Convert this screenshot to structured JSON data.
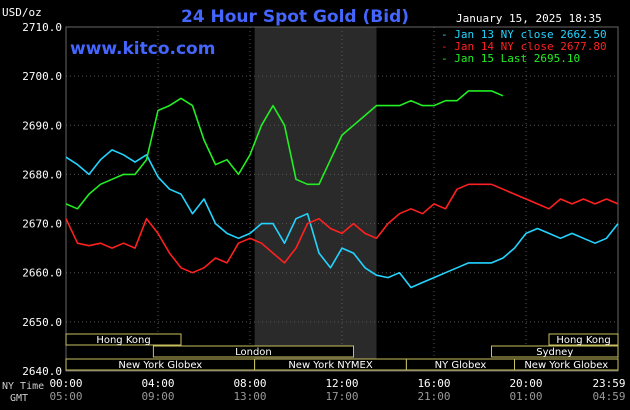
{
  "header": {
    "title": "24 Hour Spot Gold (Bid)",
    "unit_label": "USD/oz",
    "datetime": "January 15, 2025 18:35",
    "website": "www.kitco.com"
  },
  "legend": [
    {
      "text": "Jan 13 NY close 2662.50",
      "color": "#22d4ff"
    },
    {
      "text": "Jan 14 NY close 2677.80",
      "color": "#ff2020"
    },
    {
      "text": "Jan 15 Last 2695.10",
      "color": "#22ee22"
    }
  ],
  "row_labels": {
    "ny": "NY Time",
    "gmt": "GMT"
  },
  "x_ticks_ny": [
    "00:00",
    "04:00",
    "08:00",
    "12:00",
    "16:00",
    "20:00",
    "23:59"
  ],
  "x_ticks_gmt": [
    "05:00",
    "09:00",
    "13:00",
    "17:00",
    "21:00",
    "01:00",
    "04:59"
  ],
  "sessions": [
    {
      "label": "Hong Kong",
      "start": 0,
      "end": 5
    },
    {
      "label": "Hong Kong",
      "start": 21,
      "end": 24
    },
    {
      "label": "London",
      "start": 3.8,
      "end": 12.5
    },
    {
      "label": "Sydney",
      "start": 18.5,
      "end": 24
    },
    {
      "label": "New York Globex",
      "start": 0,
      "end": 8.2
    },
    {
      "label": "New York NYMEX",
      "start": 8.2,
      "end": 14.8
    },
    {
      "label": "NY Globex",
      "start": 14.8,
      "end": 19.5
    },
    {
      "label": "New York Globex",
      "start": 19.5,
      "end": 24
    }
  ],
  "chart_data": {
    "type": "line",
    "title": "24 Hour Spot Gold (Bid)",
    "ylabel": "USD/oz",
    "ylim": [
      2640,
      2710
    ],
    "xlim": [
      0,
      24
    ],
    "yticks": [
      "2640.0",
      "2650.0",
      "2660.0",
      "2670.0",
      "2680.0",
      "2690.0",
      "2700.0",
      "2710.0"
    ],
    "shaded_range": [
      8.2,
      13.5
    ],
    "series": [
      {
        "name": "Jan 13 NY close 2662.50",
        "color": "#22d4ff",
        "x": [
          0,
          0.5,
          1,
          1.5,
          2,
          2.5,
          3,
          3.5,
          4,
          4.5,
          5,
          5.5,
          6,
          6.5,
          7,
          7.5,
          8,
          8.5,
          9,
          9.5,
          10,
          10.5,
          11,
          11.5,
          12,
          12.5,
          13,
          13.5,
          14,
          14.5,
          15,
          15.5,
          16,
          16.5,
          17,
          17.5,
          18,
          18.5,
          19,
          19.5,
          20,
          20.5,
          21,
          21.5,
          22,
          22.5,
          23,
          23.5,
          24
        ],
        "y": [
          2683.5,
          2682,
          2680,
          2683,
          2685,
          2684,
          2682.5,
          2684,
          2679.5,
          2677,
          2676,
          2672,
          2675,
          2670,
          2668,
          2667,
          2668,
          2670,
          2670,
          2666,
          2671,
          2672,
          2664,
          2661,
          2665,
          2664,
          2661,
          2659.5,
          2659,
          2660,
          2657,
          2658,
          2659,
          2660,
          2661,
          2662,
          2662,
          2662,
          2663,
          2665,
          2668,
          2669,
          2668,
          2667,
          2668,
          2667,
          2666,
          2667,
          2670
        ]
      },
      {
        "name": "Jan 14 NY close 2677.80",
        "color": "#ff2020",
        "x": [
          0,
          0.5,
          1,
          1.5,
          2,
          2.5,
          3,
          3.5,
          4,
          4.5,
          5,
          5.5,
          6,
          6.5,
          7,
          7.5,
          8,
          8.5,
          9,
          9.5,
          10,
          10.5,
          11,
          11.5,
          12,
          12.5,
          13,
          13.5,
          14,
          14.5,
          15,
          15.5,
          16,
          16.5,
          17,
          17.5,
          18,
          18.5,
          19,
          19.5,
          20,
          20.5,
          21,
          21.5,
          22,
          22.5,
          23,
          23.5,
          24
        ],
        "y": [
          2671,
          2666,
          2665.5,
          2666,
          2665,
          2666,
          2665,
          2671,
          2668,
          2664,
          2661,
          2660,
          2661,
          2663,
          2662,
          2666,
          2667,
          2666,
          2664,
          2662,
          2665,
          2670,
          2671,
          2669,
          2668,
          2670,
          2668,
          2667,
          2670,
          2672,
          2673,
          2672,
          2674,
          2673,
          2677,
          2678,
          2678,
          2678,
          2677,
          2676,
          2675,
          2674,
          2673,
          2675,
          2674,
          2675,
          2674,
          2675,
          2674
        ]
      },
      {
        "name": "Jan 15 Last 2695.10",
        "color": "#22ee22",
        "x": [
          0,
          0.5,
          1,
          1.5,
          2,
          2.5,
          3,
          3.5,
          4,
          4.5,
          5,
          5.5,
          6,
          6.5,
          7,
          7.5,
          8,
          8.5,
          9,
          9.5,
          10,
          10.5,
          11,
          11.5,
          12,
          12.5,
          13,
          13.5,
          14,
          14.5,
          15,
          15.5,
          16,
          16.5,
          17,
          17.5,
          18,
          18.5,
          19
        ],
        "y": [
          2674,
          2673,
          2676,
          2678,
          2679,
          2680,
          2680,
          2683,
          2693,
          2694,
          2695.5,
          2694,
          2687,
          2682,
          2683,
          2680,
          2684,
          2690,
          2694,
          2690,
          2679,
          2678,
          2678,
          2683,
          2688,
          2690,
          2692,
          2694,
          2694,
          2694,
          2695,
          2694,
          2694,
          2695,
          2695,
          2697,
          2697,
          2697,
          2696
        ]
      }
    ]
  }
}
